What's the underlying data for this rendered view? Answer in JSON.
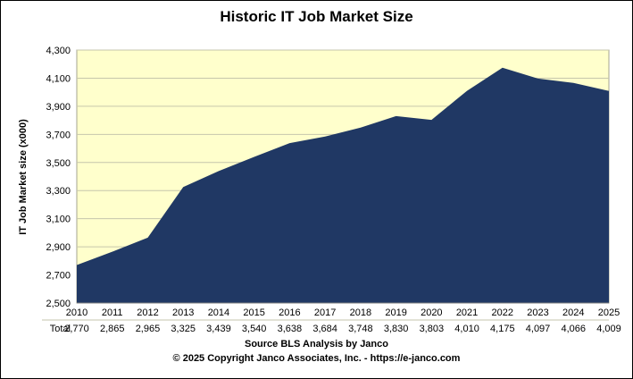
{
  "footer": {
    "source": "Source BLS Analysis  by Janco",
    "copyright": "© 2025 Copyright Janco Associates, Inc. - https://e-janco.com"
  },
  "chart_data": {
    "type": "area",
    "title": "Historic IT Job Market Size",
    "xlabel": "",
    "ylabel": "IT Job Market size (x000)",
    "categories": [
      "2010",
      "2011",
      "2012",
      "2013",
      "2014",
      "2015",
      "2016",
      "2017",
      "2018",
      "2019",
      "2020",
      "2021",
      "2022",
      "2023",
      "2024",
      "2025"
    ],
    "series": [
      {
        "name": "Total",
        "values": [
          2770,
          2865,
          2965,
          3325,
          3439,
          3540,
          3638,
          3684,
          3748,
          3830,
          3803,
          4010,
          4175,
          4097,
          4066,
          4009
        ]
      }
    ],
    "ylim": [
      2500,
      4300
    ],
    "ytick_step": 200,
    "yticks": [
      "2,500",
      "2,700",
      "2,900",
      "3,100",
      "3,300",
      "3,500",
      "3,700",
      "3,900",
      "4,100",
      "4,300"
    ],
    "grid": true,
    "legend_position": "none",
    "data_table_shown": true,
    "colors": {
      "area_fill": "#203864",
      "plot_bg": "#FFFFCC",
      "gridline": "#C6C6AC",
      "plot_border": "#A6A690",
      "axis_line": "#808080",
      "text": "#000000"
    }
  }
}
